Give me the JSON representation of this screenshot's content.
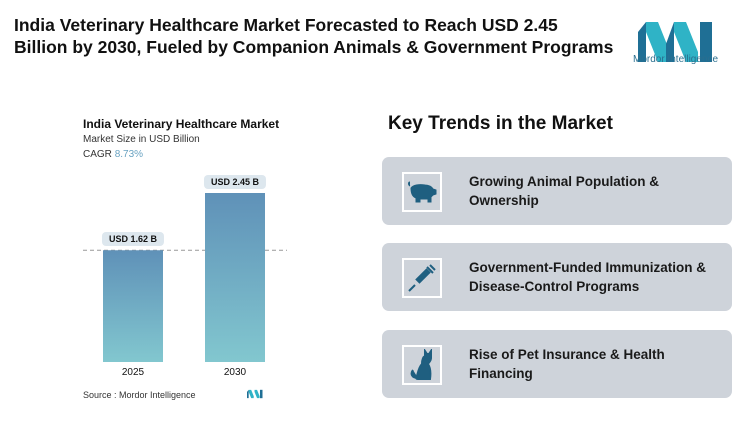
{
  "title": "India Veterinary Healthcare Market Forecasted to Reach USD 2.45 Billion by 2030, Fueled by Companion Animals & Government Programs",
  "logo_text": "Mordor Intelligence",
  "chart_data": {
    "type": "bar",
    "title": "India Veterinary Healthcare Market",
    "subtitle": "Market Size in USD Billion",
    "cagr_label": "CAGR",
    "cagr_value": "8.73%",
    "categories": [
      "2025",
      "2030"
    ],
    "values": [
      1.62,
      2.45
    ],
    "data_labels": [
      "USD 1.62 B",
      "USD 2.45 B"
    ],
    "xlabel": "",
    "ylabel": "",
    "ylim": [
      0,
      2.6
    ],
    "colors": {
      "top": "#5f91b8",
      "bottom": "#82c7cf"
    },
    "grid": false
  },
  "source": "Source :  Mordor Intelligence",
  "trends": {
    "heading": "Key Trends in the Market",
    "items": [
      {
        "label": "Growing Animal Population & Ownership",
        "icon": "pig-icon"
      },
      {
        "label": "Government-Funded Immunization & Disease-Control Programs",
        "icon": "syringe-icon"
      },
      {
        "label": "Rise of Pet Insurance & Health Financing",
        "icon": "cat-icon"
      }
    ]
  }
}
